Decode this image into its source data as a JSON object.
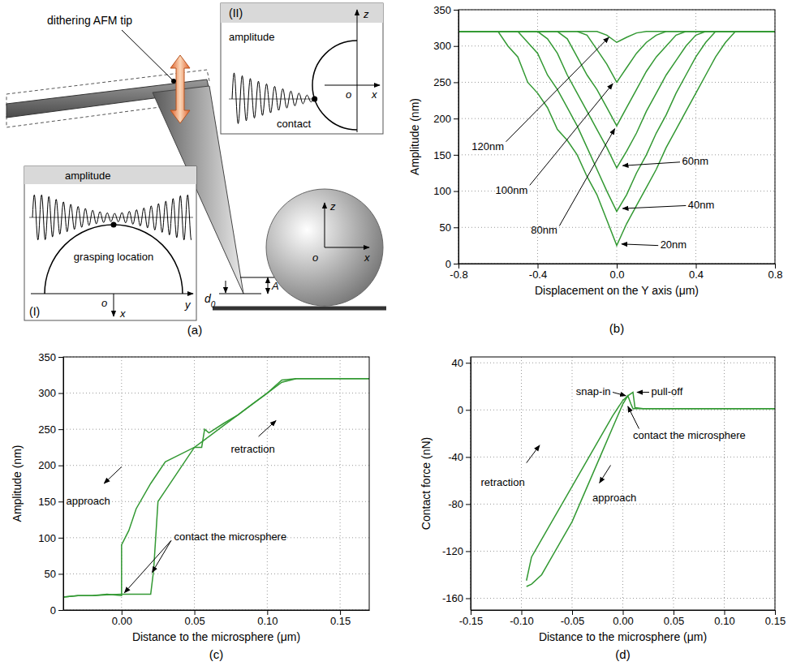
{
  "diagram": {
    "caption": "(a)",
    "tip": "dithering AFM tip",
    "inset_1": {
      "tag": "(I)",
      "signal": "amplitude",
      "point": "grasping location",
      "axis_h": "y",
      "axis_v": "x",
      "origin": "o"
    },
    "inset_2": {
      "tag": "(II)",
      "signal": "amplitude",
      "point": "contact",
      "axis_h": "x",
      "axis_v": "z",
      "origin": "o"
    },
    "sphere": {
      "axis_h": "x",
      "axis_v": "z",
      "origin": "o"
    },
    "gap": "d0",
    "amplitude": "A"
  },
  "chart_data": [
    {
      "type": "line",
      "title": "(b)",
      "x_label": "Displacement on the Y axis (μm)",
      "y_label": "Amplitude (nm)",
      "x": [
        -0.8,
        -0.6,
        -0.55,
        -0.5,
        -0.45,
        -0.4,
        -0.35,
        -0.3,
        -0.25,
        -0.2,
        -0.15,
        -0.1,
        -0.05,
        0,
        0.05,
        0.1,
        0.15,
        0.2,
        0.25,
        0.3,
        0.35,
        0.4,
        0.45,
        0.5,
        0.55,
        0.6,
        0.8
      ],
      "series": [
        {
          "name": "20nm",
          "color": "#339933",
          "values": [
            320,
            320,
            300,
            285,
            250,
            235,
            215,
            185,
            170,
            150,
            120,
            95,
            60,
            25,
            55,
            80,
            105,
            130,
            160,
            185,
            210,
            235,
            260,
            285,
            305,
            320,
            320
          ]
        },
        {
          "name": "40nm",
          "color": "#339933",
          "values": [
            320,
            320,
            320,
            320,
            305,
            290,
            260,
            240,
            215,
            190,
            160,
            130,
            100,
            72,
            95,
            125,
            150,
            180,
            205,
            235,
            260,
            285,
            305,
            320,
            320,
            320,
            320
          ]
        },
        {
          "name": "60nm",
          "color": "#339933",
          "values": [
            320,
            320,
            320,
            320,
            320,
            320,
            310,
            290,
            260,
            235,
            210,
            185,
            160,
            132,
            155,
            180,
            210,
            235,
            260,
            280,
            300,
            315,
            320,
            320,
            320,
            320,
            320
          ]
        },
        {
          "name": "80nm",
          "color": "#339933",
          "values": [
            320,
            320,
            320,
            320,
            320,
            320,
            320,
            320,
            310,
            285,
            260,
            240,
            215,
            190,
            215,
            240,
            265,
            285,
            300,
            315,
            320,
            320,
            320,
            320,
            320,
            320,
            320
          ]
        },
        {
          "name": "100nm",
          "color": "#339933",
          "values": [
            320,
            320,
            320,
            320,
            320,
            320,
            320,
            320,
            320,
            320,
            315,
            295,
            275,
            250,
            270,
            290,
            305,
            315,
            320,
            320,
            320,
            320,
            320,
            320,
            320,
            320,
            320
          ]
        },
        {
          "name": "120nm",
          "color": "#339933",
          "values": [
            320,
            320,
            320,
            320,
            320,
            320,
            320,
            320,
            320,
            320,
            320,
            320,
            315,
            305,
            312,
            318,
            320,
            320,
            320,
            320,
            320,
            320,
            320,
            320,
            320,
            320,
            320
          ]
        }
      ],
      "xlim": [
        -0.8,
        0.8
      ],
      "xticks": [
        -0.8,
        -0.4,
        {
          "value": 0,
          "label": "0.0"
        },
        0.4,
        0.8
      ],
      "ylim": [
        0,
        350
      ],
      "yticks": [
        0,
        50,
        100,
        150,
        200,
        250,
        300,
        350
      ],
      "grid": true
    },
    {
      "type": "line",
      "title": "(c)",
      "x_label": "Distance to the microsphere (μm)",
      "y_label": "Amplitude (nm)",
      "series": [
        {
          "name": "approach",
          "color": "#339933",
          "x": [
            0.17,
            0.15,
            0.12,
            0.11,
            0.1,
            0.09,
            0.08,
            0.07,
            0.06,
            0.057,
            0.055,
            0.05,
            0.04,
            0.03,
            0.02,
            0.01,
            0.005,
            0,
            0,
            -0.01,
            -0.02,
            -0.03,
            -0.04
          ],
          "values": [
            320,
            320,
            320,
            318,
            300,
            285,
            270,
            258,
            245,
            250,
            225,
            225,
            215,
            205,
            175,
            140,
            110,
            90,
            20,
            22,
            20,
            20,
            18
          ]
        },
        {
          "name": "retraction",
          "color": "#339933",
          "x": [
            -0.04,
            -0.03,
            -0.02,
            -0.01,
            0,
            0.01,
            0.02,
            0.022,
            0.025,
            0.03,
            0.04,
            0.05,
            0.06,
            0.07,
            0.08,
            0.09,
            0.1,
            0.11,
            0.12,
            0.15,
            0.17
          ],
          "values": [
            18,
            20,
            20,
            21,
            22,
            22,
            22,
            55,
            150,
            165,
            195,
            225,
            240,
            255,
            270,
            285,
            300,
            315,
            320,
            320,
            320
          ]
        }
      ],
      "annotations": [
        "contact the microsphere"
      ],
      "xlim": [
        -0.04,
        0.17
      ],
      "xticks": [
        {
          "value": 0,
          "label": "0.00"
        },
        0.05,
        {
          "value": 0.1,
          "label": "0.10"
        },
        0.15
      ],
      "ylim": [
        0,
        350
      ],
      "yticks": [
        0,
        50,
        100,
        150,
        200,
        250,
        300,
        350
      ],
      "grid": true
    },
    {
      "type": "line",
      "title": "(d)",
      "x_label": "Distance to the microsphere (μm)",
      "y_label": "Contact force (nN)",
      "series": [
        {
          "name": "approach",
          "color": "#339933",
          "x": [
            0.15,
            0.1,
            0.05,
            0.02,
            0.01,
            0.008,
            0.005,
            0,
            -0.01,
            -0.02,
            -0.03,
            -0.04,
            -0.05,
            -0.06,
            -0.07,
            -0.08,
            -0.09,
            -0.095
          ],
          "values": [
            1,
            1,
            1,
            1,
            1,
            5,
            12,
            5,
            -15,
            -35,
            -55,
            -75,
            -95,
            -110,
            -125,
            -140,
            -148,
            -150
          ]
        },
        {
          "name": "retraction",
          "color": "#339933",
          "x": [
            -0.095,
            -0.09,
            -0.08,
            -0.07,
            -0.06,
            -0.05,
            -0.04,
            -0.03,
            -0.02,
            -0.01,
            0,
            0.005,
            0.01,
            0.012,
            0.02,
            0.05,
            0.1,
            0.15
          ],
          "values": [
            -145,
            -125,
            -110,
            -95,
            -80,
            -65,
            -50,
            -35,
            -20,
            -5,
            8,
            12,
            15,
            2,
            1,
            1,
            1,
            1
          ]
        }
      ],
      "annotations": [
        "snap-in",
        "pull-off",
        "contact the microsphere"
      ],
      "xlim": [
        -0.15,
        0.15
      ],
      "xticks": [
        -0.15,
        {
          "value": -0.1,
          "label": "-0.10"
        },
        -0.05,
        {
          "value": 0,
          "label": "0.00"
        },
        0.05,
        {
          "value": 0.1,
          "label": "0.10"
        },
        0.15
      ],
      "ylim": [
        -170,
        45
      ],
      "yticks": [
        -160,
        -120,
        -80,
        -40,
        0,
        40
      ],
      "grid": true
    }
  ]
}
